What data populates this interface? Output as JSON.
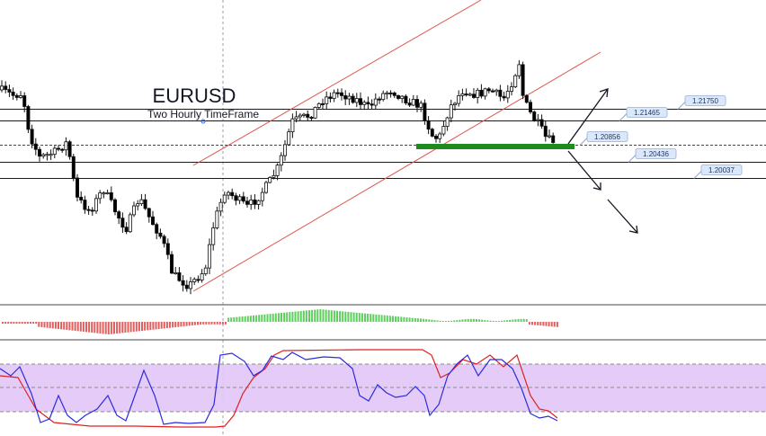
{
  "chart_data": {
    "type": "candlestick",
    "title": "EURUSD",
    "subtitle": "Two Hourly TimeFrame",
    "current_price": 1.20856,
    "levels": [
      {
        "label": "1.21750",
        "value": 1.2175
      },
      {
        "label": "1.21465",
        "value": 1.21465
      },
      {
        "label": "1.20856",
        "value": 1.20856
      },
      {
        "label": "1.20436",
        "value": 1.20436
      },
      {
        "label": "1.20037",
        "value": 1.20037
      }
    ],
    "support_zone": 1.20856,
    "trend_channel": "ascending",
    "projection_arrows": [
      "up",
      "down"
    ],
    "indicators": [
      "MACD histogram",
      "Stochastic oscillator"
    ],
    "colors": {
      "bull_candle": "#ffffff",
      "bear_candle": "#000000",
      "channel": "#e0554a",
      "support": "#1e8b1e",
      "macd_pos": "#5ccf5c",
      "macd_neg": "#e06060",
      "stoch_k": "#2b2bdb",
      "stoch_d": "#e02020",
      "stoch_band": "#e2c6f7",
      "level_label_bg": "#dbe7fb"
    }
  }
}
